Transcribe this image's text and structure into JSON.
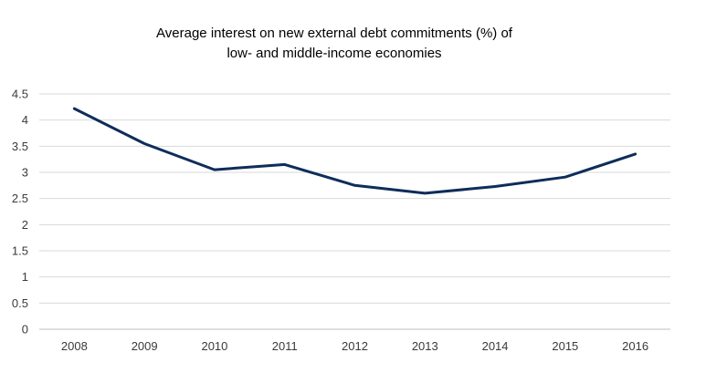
{
  "chart_data": {
    "type": "line",
    "title_lines": [
      "Average interest on new external debt commitments (%) of",
      "low- and middle-income economies"
    ],
    "categories": [
      "2008",
      "2009",
      "2010",
      "2011",
      "2012",
      "2013",
      "2014",
      "2015",
      "2016"
    ],
    "series": [
      {
        "name": "Average interest on new external debt commitments (%)",
        "values": [
          4.22,
          3.55,
          3.05,
          3.15,
          2.75,
          2.6,
          2.73,
          2.91,
          3.35
        ]
      }
    ],
    "ylim": [
      0,
      4.5
    ],
    "yticks": [
      "0",
      "0.5",
      "1",
      "1.5",
      "2",
      "2.5",
      "3",
      "3.5",
      "4",
      "4.5"
    ],
    "ytick_values": [
      0,
      0.5,
      1,
      1.5,
      2,
      2.5,
      3,
      3.5,
      4,
      4.5
    ],
    "grid": true,
    "xlabel": "",
    "ylabel": ""
  },
  "colors": {
    "series": "#0e2d5a",
    "grid": "#d9d9d9"
  }
}
